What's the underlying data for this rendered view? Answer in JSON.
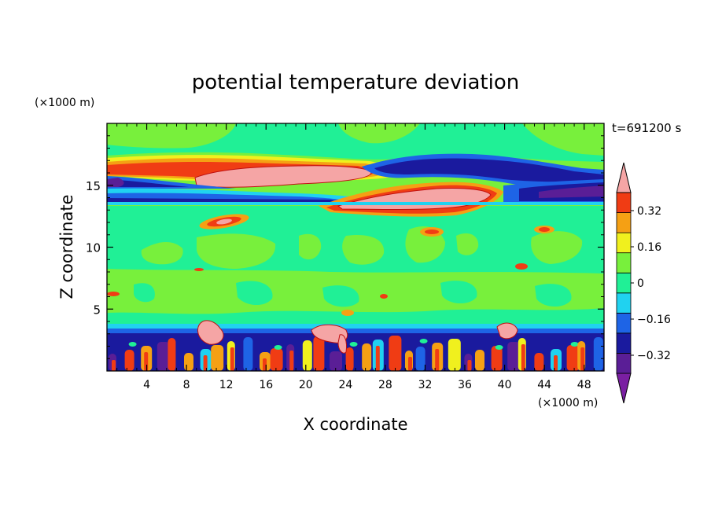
{
  "chart_data": {
    "type": "heatmap",
    "title": "potential temperature deviation",
    "xlabel": "X coordinate",
    "ylabel": "Z coordinate",
    "x_unit": "(×1000 m)",
    "y_unit": "(×1000 m)",
    "time_label": "t=691200 s",
    "x_ticks": [
      4,
      8,
      12,
      16,
      20,
      24,
      28,
      32,
      36,
      40,
      44,
      48
    ],
    "y_ticks": [
      5,
      10,
      15
    ],
    "xlim": [
      0,
      50
    ],
    "ylim": [
      0,
      20
    ],
    "colorbar": {
      "levels": [
        -0.4,
        -0.32,
        -0.24,
        -0.16,
        -0.08,
        0,
        0.08,
        0.16,
        0.24,
        0.32,
        0.4
      ],
      "tick_labels": [
        "0.32",
        "0.16",
        "0",
        "−0.16",
        "−0.32"
      ],
      "tick_values": [
        0.32,
        0.16,
        0,
        -0.16,
        -0.32
      ],
      "colors": [
        "#7a1fa2",
        "#5a1e96",
        "#1a1a9e",
        "#1e64e6",
        "#20d2f0",
        "#20f096",
        "#78f03c",
        "#f0f01e",
        "#f5a014",
        "#f03c14",
        "#f5a5a5"
      ]
    }
  }
}
